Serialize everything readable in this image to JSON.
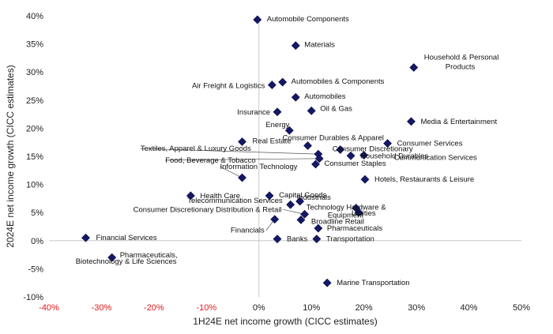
{
  "chart_data": {
    "type": "scatter",
    "xlabel": "1H24E net income growth (CICC estimates)",
    "ylabel": "2024E net income growth (CICC estimates)",
    "xlim": [
      -40,
      50
    ],
    "ylim": [
      -10,
      40
    ],
    "x_ticks": [
      "-40%",
      "-30%",
      "-20%",
      "-10%",
      "0%",
      "10%",
      "20%",
      "30%",
      "40%",
      "50%"
    ],
    "y_ticks": [
      "-10%",
      "-5%",
      "0%",
      "5%",
      "10%",
      "15%",
      "20%",
      "25%",
      "30%",
      "35%",
      "40%"
    ],
    "marker_color": "#141866",
    "negative_tick_color": "#e8161b",
    "points": [
      {
        "label": "Automobile Components",
        "x": -0.3,
        "y": 39.3
      },
      {
        "label": "Materials",
        "x": 7,
        "y": 34.7
      },
      {
        "label": "Household & Personal Products",
        "x": 29.5,
        "y": 30.8
      },
      {
        "label": "Air Freight & Logistics",
        "x": 2.5,
        "y": 27.7
      },
      {
        "label": "Automobiles & Components",
        "x": 4.5,
        "y": 28.2
      },
      {
        "label": "Automobiles",
        "x": 7,
        "y": 25.5
      },
      {
        "label": "Insurance",
        "x": 3.5,
        "y": 22.9
      },
      {
        "label": "Oil & Gas",
        "x": 10,
        "y": 23.1
      },
      {
        "label": "Media & Entertainment",
        "x": 29,
        "y": 21.2
      },
      {
        "label": "Energy",
        "x": 5.8,
        "y": 19.6
      },
      {
        "label": "Real Estate",
        "x": -3.2,
        "y": 17.6
      },
      {
        "label": "Consumer Durables & Apparel",
        "x": 9.3,
        "y": 16.9
      },
      {
        "label": "Consumer Services",
        "x": 24.5,
        "y": 17.3
      },
      {
        "label": "Consumer Discretionary",
        "x": 15.5,
        "y": 16.2
      },
      {
        "label": "Textiles, Apparel & Luxury Goods",
        "x": 11.3,
        "y": 15.4
      },
      {
        "label": "Household Durables",
        "x": 17.5,
        "y": 15.1
      },
      {
        "label": "Food, Beverage & Tobacco",
        "x": 11.5,
        "y": 14.6
      },
      {
        "label": "Consumer Staples",
        "x": 10.8,
        "y": 13.6
      },
      {
        "label": "Communication Services",
        "x": 20,
        "y": 15.2
      },
      {
        "label": "Information Technology",
        "x": -3.2,
        "y": 11.2
      },
      {
        "label": "Hotels, Restaurants & Leisure",
        "x": 20.2,
        "y": 10.9
      },
      {
        "label": "Health Care",
        "x": -13,
        "y": 8
      },
      {
        "label": "Capital Goods",
        "x": 2,
        "y": 8
      },
      {
        "label": "Industrials",
        "x": 7.8,
        "y": 7
      },
      {
        "label": "Telecommunication Services",
        "x": 6,
        "y": 6.4
      },
      {
        "label": "Technology Hardware & Equipment",
        "x": 18.5,
        "y": 5.8
      },
      {
        "label": "Utilities",
        "x": 19,
        "y": 5
      },
      {
        "label": "Consumer Discretionary Distribution & Retail",
        "x": 8.7,
        "y": 4.7
      },
      {
        "label": "Broadline Retail",
        "x": 8,
        "y": 3.7
      },
      {
        "label": "Financials",
        "x": 3,
        "y": 3.8
      },
      {
        "label": "Pharmaceuticals",
        "x": 11.3,
        "y": 2.2
      },
      {
        "label": "Banks",
        "x": 3.5,
        "y": 0.3
      },
      {
        "label": "Transportation",
        "x": 11,
        "y": 0.3
      },
      {
        "label": "Financial Services",
        "x": -33,
        "y": 0.5
      },
      {
        "label": "Pharmaceuticals, Biotechnology & Life Sciences",
        "x": -28,
        "y": -3
      },
      {
        "label": "Marine Transportation",
        "x": 13,
        "y": -7.5
      }
    ]
  }
}
